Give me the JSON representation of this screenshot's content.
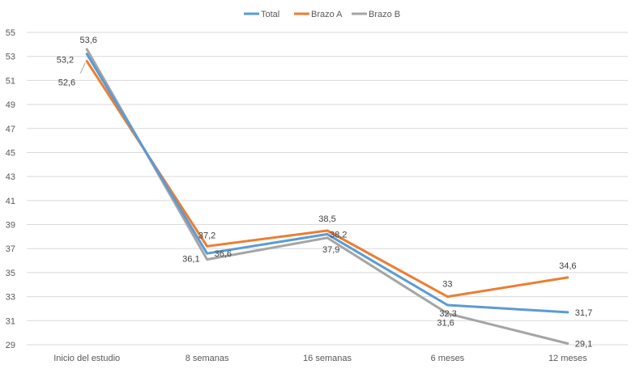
{
  "chart_data": {
    "type": "line",
    "categories": [
      "Inicio del estudio",
      "8 semanas",
      "16 semanas",
      "6 meses",
      "12 meses"
    ],
    "series": [
      {
        "name": "Total",
        "color": "#5B9BD5",
        "values": [
          53.2,
          36.6,
          38.2,
          32.3,
          31.7
        ]
      },
      {
        "name": "Brazo A",
        "color": "#ED7D31",
        "values": [
          52.6,
          37.2,
          38.5,
          33.0,
          34.6
        ]
      },
      {
        "name": "Brazo B",
        "color": "#A5A5A5",
        "values": [
          53.6,
          36.1,
          37.9,
          31.6,
          29.1
        ]
      }
    ],
    "data_labels": [
      [
        "53,2",
        "36,6",
        "38,2",
        "32,3",
        "31,7"
      ],
      [
        "52,6",
        "37,2",
        "38,5",
        "33",
        "34,6"
      ],
      [
        "53,6",
        "36,1",
        "37,9",
        "31,6",
        "29,1"
      ]
    ],
    "y_ticks": [
      "29",
      "31",
      "33",
      "35",
      "37",
      "39",
      "41",
      "43",
      "45",
      "47",
      "49",
      "51",
      "53",
      "55"
    ],
    "ylim": [
      29,
      55
    ],
    "y_tick_step": 2,
    "grid": true,
    "legend_position": "top-center",
    "title": "",
    "xlabel": "",
    "ylabel": ""
  }
}
